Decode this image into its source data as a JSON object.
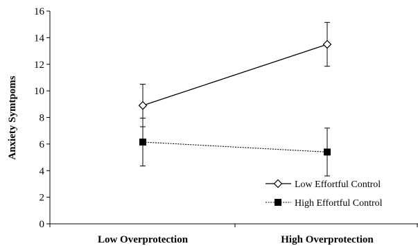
{
  "chart_data": {
    "type": "line",
    "title": "",
    "xlabel": "",
    "ylabel": "Anxiety Symtpoms",
    "ylim": [
      0,
      16
    ],
    "yticks": [
      0,
      2,
      4,
      6,
      8,
      10,
      12,
      14,
      16
    ],
    "categories": [
      "Low Overprotection",
      "High Overprotection"
    ],
    "grid": false,
    "legend_position": "bottom-right",
    "series": [
      {
        "name": "Low Effortful Control",
        "values": [
          8.9,
          13.5
        ],
        "error": [
          1.6,
          1.65
        ],
        "marker": "open-diamond",
        "line_style": "solid",
        "color": "#000000"
      },
      {
        "name": "High Effortful Control",
        "values": [
          6.15,
          5.4
        ],
        "error": [
          1.8,
          1.8
        ],
        "marker": "filled-square",
        "line_style": "dotted",
        "color": "#000000"
      }
    ]
  }
}
